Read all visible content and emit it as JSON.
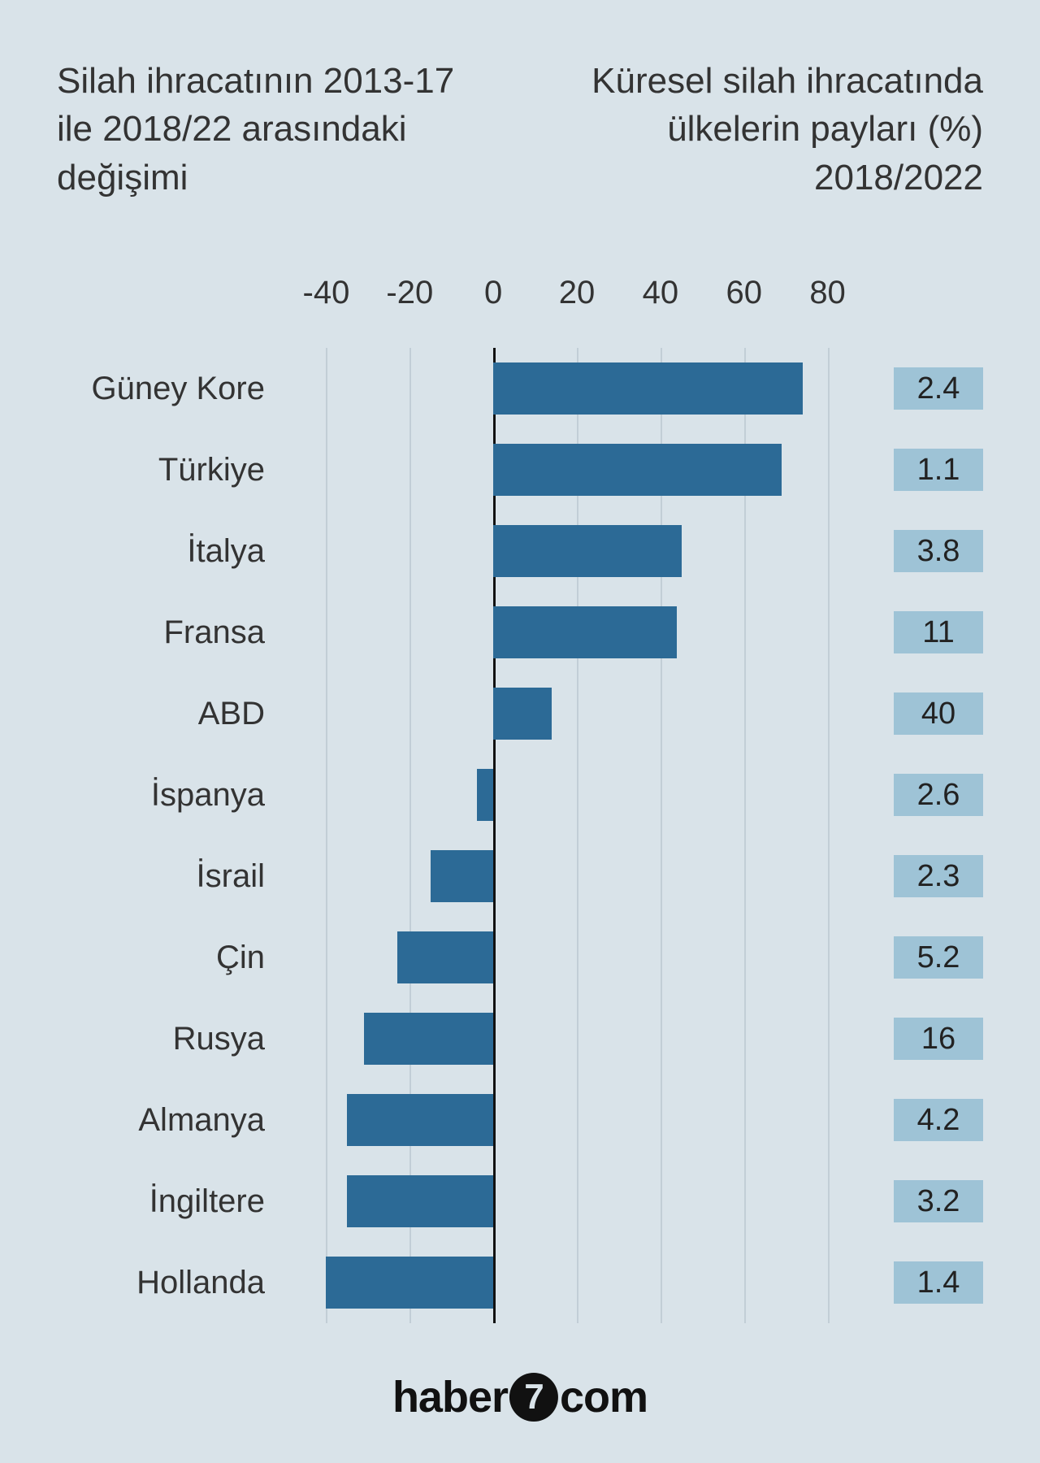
{
  "titles": {
    "left": "Silah ihracatının 2013-17 ile 2018/22 arasındaki değişimi",
    "right": "Küresel silah ihracatında ülkelerin payları (%) 2018/2022"
  },
  "chart": {
    "type": "bar",
    "orientation": "horizontal",
    "x_ticks": [
      -40,
      -20,
      0,
      20,
      40,
      60,
      80
    ],
    "x_min": -50,
    "x_max": 90,
    "bar_color": "#2c6a96",
    "share_badge_bg": "#9ec3d6",
    "grid_color": "#c2ced6",
    "zero_line_color": "#111111",
    "background_color": "#d9e3e9",
    "text_color": "#333333",
    "tick_fontsize": 40,
    "label_fontsize": 40,
    "title_fontsize": 44,
    "bar_height_ratio": 0.64,
    "rows": [
      {
        "country": "Güney Kore",
        "value": 74,
        "share": "2.4"
      },
      {
        "country": "Türkiye",
        "value": 69,
        "share": "1.1"
      },
      {
        "country": "İtalya",
        "value": 45,
        "share": "3.8"
      },
      {
        "country": "Fransa",
        "value": 44,
        "share": "11"
      },
      {
        "country": "ABD",
        "value": 14,
        "share": "40"
      },
      {
        "country": "İspanya",
        "value": -4,
        "share": "2.6"
      },
      {
        "country": "İsrail",
        "value": -15,
        "share": "2.3"
      },
      {
        "country": "Çin",
        "value": -23,
        "share": "5.2"
      },
      {
        "country": "Rusya",
        "value": -31,
        "share": "16"
      },
      {
        "country": "Almanya",
        "value": -35,
        "share": "4.2"
      },
      {
        "country": "İngiltere",
        "value": -35,
        "share": "3.2"
      },
      {
        "country": "Hollanda",
        "value": -40,
        "share": "1.4"
      }
    ]
  },
  "logo": {
    "left": "haber",
    "mid": "7",
    "right": "com"
  }
}
